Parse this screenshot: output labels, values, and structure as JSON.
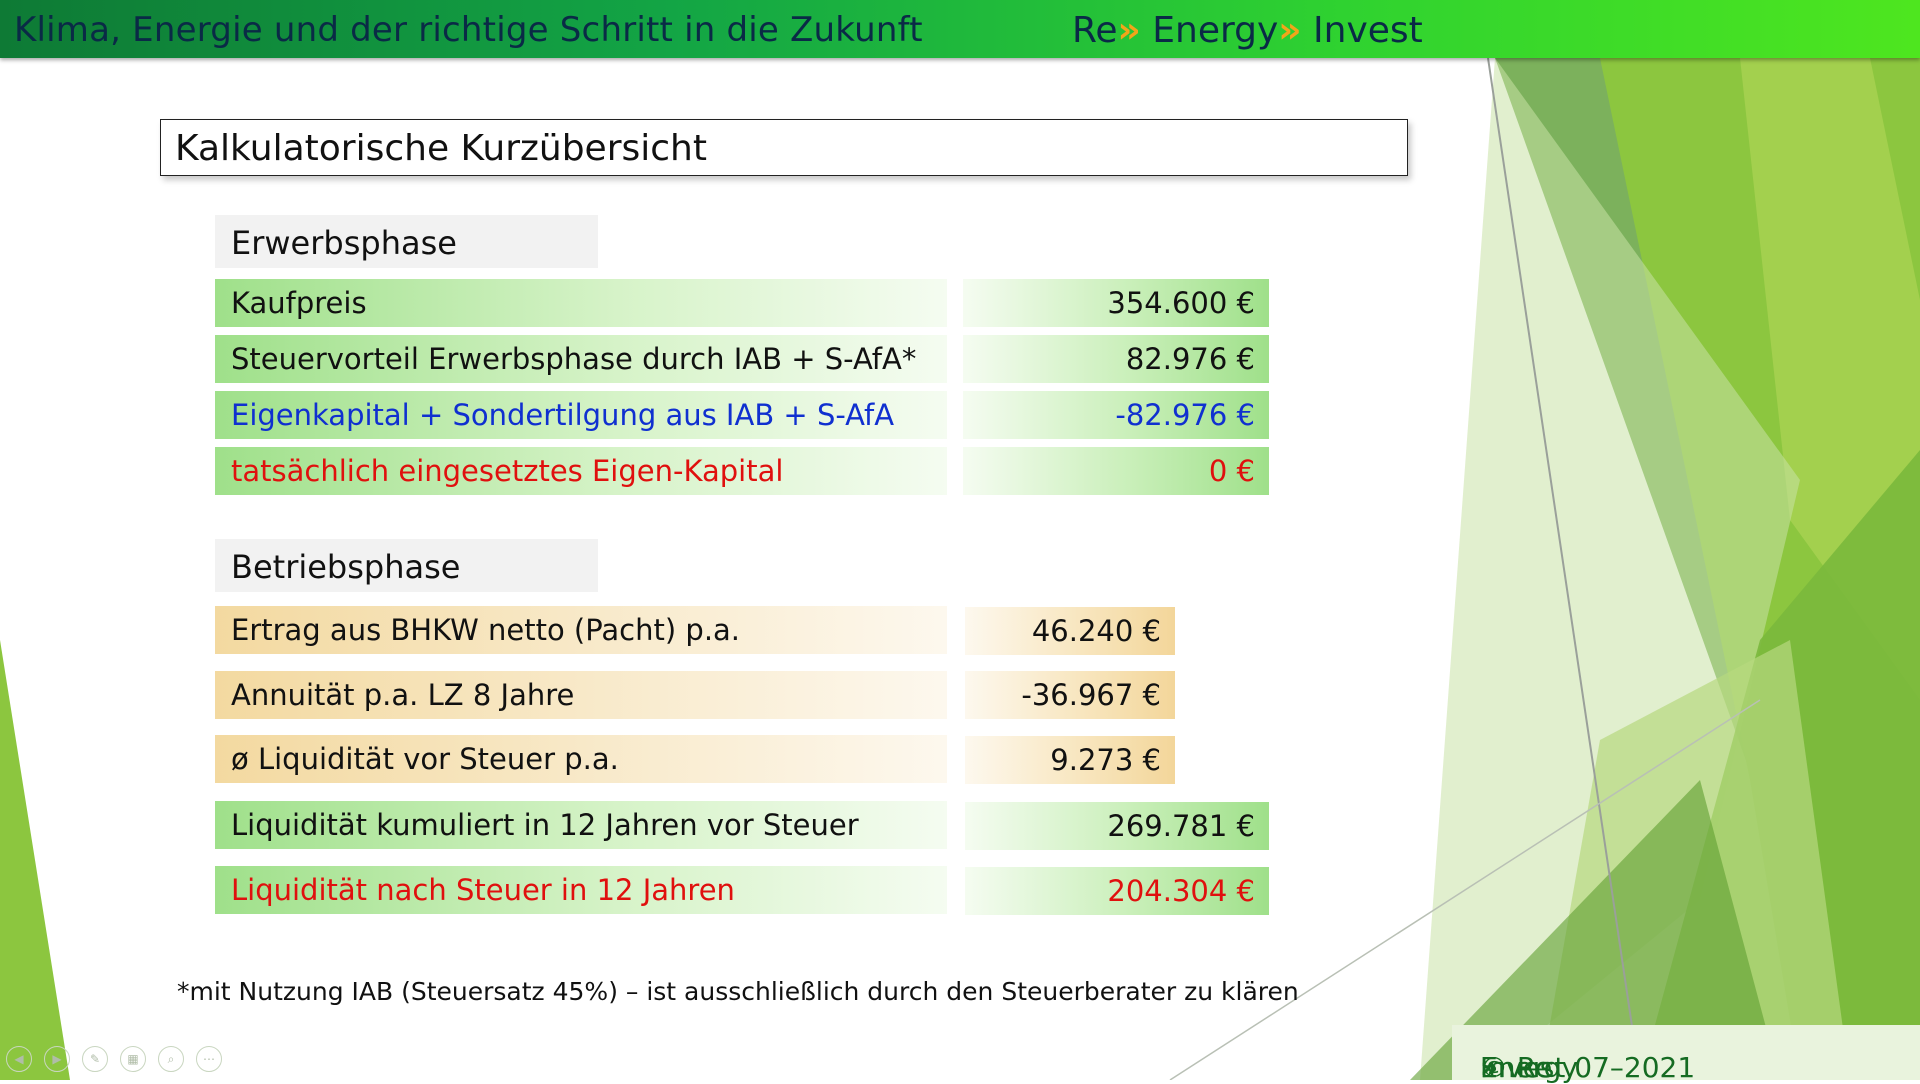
{
  "header": {
    "left_title": "Klima, Energie und der richtige Schritt in die Zukunft",
    "brand_part1": "Re",
    "brand_arrow": "»",
    "brand_part2": " Energy",
    "brand_part3": " Invest"
  },
  "slide_title": "Kalkulatorische Kurzübersicht",
  "erwerbsphase": {
    "heading": "Erwerbsphase",
    "rows": [
      {
        "label": "Kaufpreis",
        "value": "354.600 €"
      },
      {
        "label": "Steuervorteil Erwerbsphase durch IAB + S-AfA*",
        "value": "82.976 €"
      },
      {
        "label": "Eigenkapital + Sondertilgung aus IAB + S-AfA",
        "value": "-82.976 €"
      },
      {
        "label": "tatsächlich eingesetztes Eigen-Kapital",
        "value": "0 €"
      }
    ]
  },
  "betriebsphase": {
    "heading": "Betriebsphase",
    "rows": [
      {
        "label": "Ertrag aus BHKW netto (Pacht) p.a.",
        "value": "46.240 €"
      },
      {
        "label": "Annuität p.a. LZ 8 Jahre",
        "value": "-36.967 €"
      },
      {
        "label": "ø Liquidität vor Steuer p.a.",
        "value": "9.273 €"
      },
      {
        "label": "Liquidität kumuliert in 12 Jahren vor Steuer",
        "value": "269.781 €"
      },
      {
        "label": "Liquidität nach Steuer in 12 Jahren",
        "value": "204.304 €"
      }
    ]
  },
  "footnote": "*mit Nutzung IAB (Steuersatz 45%) – ist ausschließlich durch den Steuerberater zu klären",
  "copyright": {
    "prefix": "© Re",
    "arrow": "»",
    "mid": " Energy",
    "suffix": " Invest 07–2021"
  },
  "colors": {
    "accent_green": "#13a545",
    "text_blue": "#1030d0",
    "text_red": "#e0100e",
    "brand_arrow": "#f2a51a"
  }
}
